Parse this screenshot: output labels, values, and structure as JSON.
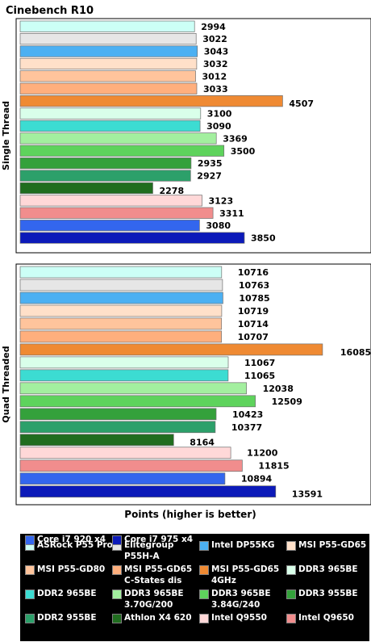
{
  "colors": [
    "#ccfff6",
    "#e6e6e6",
    "#4cb0f2",
    "#ffe0c9",
    "#ffc49c",
    "#ffaf7d",
    "#ef8a33",
    "#d9ffea",
    "#3cdcd2",
    "#a3ef9f",
    "#5ed35c",
    "#34a13b",
    "#2ca06a",
    "#206d1f",
    "#ffd8d8",
    "#f18d8d",
    "#3366ee",
    "#0c1ab9"
  ],
  "legend": {
    "items": [
      {
        "label": "ASRock P55 Pro",
        "color": "#ccfff6"
      },
      {
        "label": "Elitegroup P55H-A",
        "color": "#e6e6e6"
      },
      {
        "label": "Intel DP55KG",
        "color": "#4cb0f2"
      },
      {
        "label": "MSI P55-GD65",
        "color": "#ffe0c9"
      },
      {
        "label": "MSI P55-GD80",
        "color": "#ffc49c"
      },
      {
        "label": "MSI P55-GD65 C-States dis",
        "color": "#ffaf7d"
      },
      {
        "label": "MSI P55-GD65 4GHz",
        "color": "#ef8a33"
      },
      {
        "label": "DDR3 965BE",
        "color": "#d9ffea"
      },
      {
        "label": "DDR2 965BE",
        "color": "#3cdcd2"
      },
      {
        "label": "DDR3 965BE 3.70G/200",
        "color": "#a3ef9f"
      },
      {
        "label": "DDR3 965BE 3.84G/240",
        "color": "#5ed35c"
      },
      {
        "label": "DDR3 955BE",
        "color": "#34a13b"
      },
      {
        "label": "DDR2 955BE",
        "color": "#2ca06a"
      },
      {
        "label": "Athlon X4 620",
        "color": "#206d1f"
      },
      {
        "label": "Intel Q9550",
        "color": "#ffd8d8"
      },
      {
        "label": "Intel Q9650",
        "color": "#f18d8d"
      },
      {
        "label": "Core i7 920 x4",
        "color": "#3366ee"
      },
      {
        "label": "Core i7 975 x4",
        "color": "#0c1ab9"
      }
    ]
  },
  "chart_data": [
    {
      "type": "bar",
      "orientation": "horizontal",
      "title": "Cinebench R10",
      "ylabel": "Single Thread",
      "xlim": [
        0,
        16085
      ],
      "grid": false,
      "legend": "bottom",
      "categories": [
        "ASRock P55 Pro",
        "Elitegroup P55H-A",
        "Intel DP55KG",
        "MSI P55-GD65",
        "MSI P55-GD80",
        "MSI P55-GD65 C-States dis",
        "MSI P55-GD65 4GHz",
        "DDR3 965BE",
        "DDR2 965BE",
        "DDR3 965BE 3.70G/200",
        "DDR3 965BE 3.84G/240",
        "DDR3 955BE",
        "DDR2 955BE",
        "Athlon X4 620",
        "Intel Q9550",
        "Intel Q9650",
        "Core i7 920 x4",
        "Core i7 975 x4"
      ],
      "values": [
        2994,
        3022,
        3043,
        3032,
        3012,
        3033,
        4507,
        3100,
        3090,
        3369,
        3500,
        2935,
        2927,
        2278,
        3123,
        3311,
        3080,
        3850
      ],
      "labels": [
        "2994",
        "3022",
        "3043",
        "3032",
        "3012",
        "3033",
        "4507",
        "3100",
        "3090",
        "3369",
        "3500",
        "2935",
        "2927",
        "2278",
        "3123",
        "3311",
        "3080",
        "3850"
      ]
    },
    {
      "type": "bar",
      "orientation": "horizontal",
      "ylabel": "Quad Threaded",
      "xlabel": "Points (higher is better)",
      "xlim": [
        0,
        16085
      ],
      "grid": false,
      "legend": "bottom",
      "categories": [
        "ASRock P55 Pro",
        "Elitegroup P55H-A",
        "Intel DP55KG",
        "MSI P55-GD65",
        "MSI P55-GD80",
        "MSI P55-GD65 C-States dis",
        "MSI P55-GD65 4GHz",
        "DDR3 965BE",
        "DDR2 965BE",
        "DDR3 965BE 3.70G/200",
        "DDR3 965BE 3.84G/240",
        "DDR3 955BE",
        "DDR2 955BE",
        "Athlon X4 620",
        "Intel Q9550",
        "Intel Q9650",
        "Core i7 920 x4",
        "Core i7 975 x4"
      ],
      "values": [
        10716,
        10763,
        10785,
        10719,
        10714,
        10707,
        16085,
        11067,
        11065,
        12038,
        12509,
        10423,
        10377,
        8164,
        11200,
        11815,
        10894,
        13591
      ],
      "labels": [
        "10716",
        "10763",
        "10785",
        "10719",
        "10714",
        "10707",
        "16085",
        "11067",
        "11065",
        "12038",
        "12509",
        "10423",
        "10377",
        "8164",
        "11200",
        "11815",
        "10894",
        "13591"
      ]
    }
  ]
}
